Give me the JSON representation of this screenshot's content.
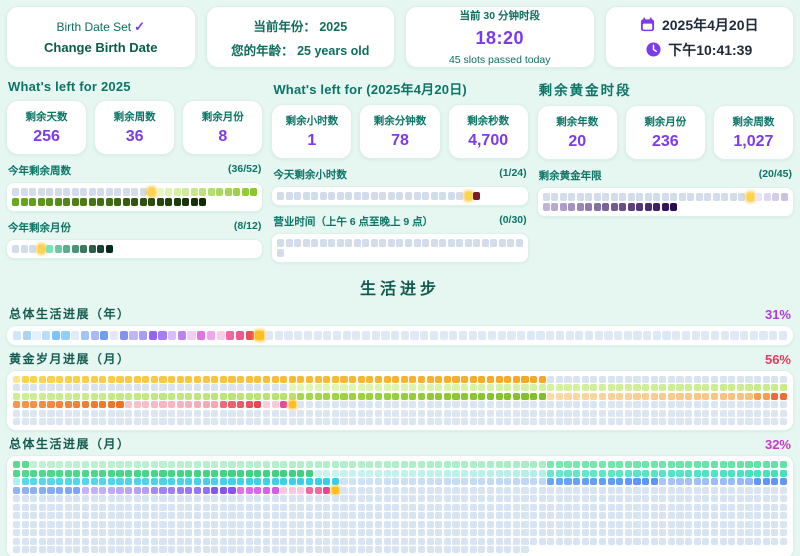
{
  "top_cards": {
    "birth": {
      "status": "Birth Date Set",
      "check": "✓",
      "button": "Change Birth Date"
    },
    "year": {
      "line1": "当前年份： 2025",
      "line2": "您的年龄： 25 years old"
    },
    "slot": {
      "label": "当前 30 分钟时段",
      "time": "18:20",
      "sub": "45 slots passed today"
    },
    "date": {
      "date": "2025年4月20日",
      "time": "下午10:41:39"
    }
  },
  "sections": {
    "left": {
      "title": "What's left for 2025",
      "stats": [
        {
          "label": "剩余天数",
          "value": "256"
        },
        {
          "label": "剩余周数",
          "value": "36"
        },
        {
          "label": "剩余月份",
          "value": "8"
        }
      ],
      "grid1_label": "今年剩余周数",
      "grid1_count": "(36/52)",
      "grid2_label": "今年剩余月份",
      "grid2_count": "(8/12)"
    },
    "middle": {
      "title": "What's left for (2025年4月20日)",
      "stats": [
        {
          "label": "剩余小时数",
          "value": "1"
        },
        {
          "label": "剩余分钟数",
          "value": "78"
        },
        {
          "label": "剩余秒数",
          "value": "4,700"
        }
      ],
      "grid1_label": "今天剩余小时数",
      "grid1_count": "(1/24)",
      "grid2_label": "营业时间（上午 6 点至晚上 9 点）",
      "grid2_count": "(0/30)"
    },
    "right": {
      "title": "剩余黄金时段",
      "stats": [
        {
          "label": "剩余年数",
          "value": "20"
        },
        {
          "label": "剩余月份",
          "value": "236"
        },
        {
          "label": "剩余周数",
          "value": "1,027"
        }
      ],
      "grid1_label": "剩余黄金年限",
      "grid1_count": "(20/45)"
    }
  },
  "life": {
    "title": "生活进步",
    "bars": [
      {
        "label": "总体生活进展（年）",
        "pct": "31%",
        "pct_color": "#b23bdf"
      },
      {
        "label": "黄金岁月进展（月）",
        "pct": "56%",
        "pct_color": "#e8385f"
      },
      {
        "label": "总体生活进展（月）",
        "pct": "32%",
        "pct_color": "#c936c9"
      }
    ]
  },
  "colors": {
    "accent_teal": "#0c7566",
    "accent_purple": "#7c3aed",
    "current_yellow": "#fbbf24",
    "passed_gray": "#d2dcea",
    "future_gray": "#dce6f3"
  },
  "grids": {
    "weeks52": {
      "runs": [
        {
          "n": 16,
          "c": "#d2dcea"
        },
        {
          "n": 1,
          "c": "#fcd34d",
          "cur": true
        },
        {
          "n": 12,
          "g": [
            "#e8f9c0",
            "#8ac72c"
          ]
        },
        {
          "n": 23,
          "g": [
            "#6aa81f",
            "#122b07"
          ]
        }
      ]
    },
    "months12": {
      "runs": [
        {
          "n": 3,
          "c": "#d2dcea"
        },
        {
          "n": 1,
          "c": "#fcd34d",
          "cur": true
        },
        {
          "n": 8,
          "g": [
            "#7ee2b8",
            "#07291d"
          ]
        }
      ]
    },
    "hours24": {
      "runs": [
        {
          "n": 22,
          "c": "#d2dcea"
        },
        {
          "n": 1,
          "c": "#fcd34d",
          "cur": true
        },
        {
          "n": 1,
          "c": "#7a1d2b"
        }
      ]
    },
    "biz30": {
      "runs": [
        {
          "n": 30,
          "c": "#d2dcea"
        }
      ]
    },
    "golden45": {
      "runs": [
        {
          "n": 24,
          "c": "#d2dcea"
        },
        {
          "n": 1,
          "c": "#fcd34d",
          "cur": true
        },
        {
          "n": 20,
          "g": [
            "#e9e3fb",
            "#2a0a52"
          ]
        }
      ]
    },
    "years80": {
      "runs": [
        {
          "list": [
            "#cfe6fb",
            "#a8d4f8",
            "#e4f0fc",
            "#bcdcfa",
            "#7dc4f6",
            "#8fd0f8",
            "#e0ecfb",
            "#9fc6f7",
            "#aab8f5",
            "#6e9ff2",
            "#e3e7fc",
            "#8591f0",
            "#c3b4fa",
            "#a79df4",
            "#8f66ec",
            "#a77df1",
            "#d9bdfa",
            "#bb84f3",
            "#f4cdf0",
            "#e473e2",
            "#f0a6ee",
            "#f8cfe6",
            "#f0679f",
            "#ee5a8b",
            "#ef4d55"
          ]
        },
        {
          "n": 1,
          "c": "#fbbf24",
          "cur": true
        },
        {
          "n": 54,
          "c": "#dfe9f6"
        }
      ]
    },
    "golden540": {
      "runs": [
        {
          "n": 1,
          "c": "#fde68a"
        },
        {
          "n": 61,
          "g": [
            "#fcd34d",
            "#f6a723"
          ]
        },
        {
          "n": 60,
          "c": "#dae4f0"
        },
        {
          "n": 58,
          "g": [
            "#e2f6b5",
            "#c8ec8a"
          ]
        },
        {
          "n": 33,
          "g": [
            "#cdee96",
            "#b5e36e"
          ]
        },
        {
          "n": 29,
          "g": [
            "#a4d94a",
            "#7fbf27"
          ]
        },
        {
          "n": 24,
          "g": [
            "#fcd9a8",
            "#f9bf7d"
          ]
        },
        {
          "n": 2,
          "c": "#f59e4b"
        },
        {
          "n": 2,
          "c": "#ef6a3a"
        },
        {
          "n": 13,
          "g": [
            "#f8954d",
            "#ef7222"
          ]
        },
        {
          "n": 11,
          "g": [
            "#f9c3cb",
            "#f4a6b5"
          ]
        },
        {
          "n": 5,
          "g": [
            "#ee6a76",
            "#e74853"
          ]
        },
        {
          "n": 2,
          "c": "#f9ccd8"
        },
        {
          "n": 1,
          "c": "#e84a9b"
        },
        {
          "n": 1,
          "c": "#fbbf24",
          "cur": true
        },
        {
          "n": 237,
          "c": "#dce6f3"
        }
      ]
    },
    "months960": {
      "runs": [
        {
          "n": 2,
          "c": "#5fd98f"
        },
        {
          "n": 60,
          "g": [
            "#bdf2d2",
            "#a9edc6"
          ]
        },
        {
          "n": 28,
          "g": [
            "#79e8b0",
            "#5fe3a4"
          ]
        },
        {
          "n": 35,
          "g": [
            "#52d88d",
            "#3ecf7f"
          ]
        },
        {
          "n": 27,
          "g": [
            "#c9f4ef",
            "#b2efe8"
          ]
        },
        {
          "n": 28,
          "g": [
            "#69e6cf",
            "#45dfc2"
          ]
        },
        {
          "n": 1,
          "c": "#aeeef8"
        },
        {
          "n": 37,
          "g": [
            "#5ad7ef",
            "#38cde8"
          ]
        },
        {
          "n": 24,
          "g": [
            "#cfe2f8",
            "#bed7f5"
          ]
        },
        {
          "n": 13,
          "g": [
            "#6da4f6",
            "#5b96f3"
          ]
        },
        {
          "n": 11,
          "g": [
            "#a9c4fa",
            "#96b7f8"
          ]
        },
        {
          "n": 4,
          "c": "#6395f5"
        },
        {
          "n": 8,
          "g": [
            "#8fb3f8",
            "#7da4f6"
          ]
        },
        {
          "n": 8,
          "g": [
            "#c3b4fc",
            "#b29efa"
          ]
        },
        {
          "n": 7,
          "g": [
            "#a487f8",
            "#9271f3"
          ]
        },
        {
          "n": 3,
          "c": "#8456ee"
        },
        {
          "n": 5,
          "g": [
            "#e070f0",
            "#d55be8"
          ]
        },
        {
          "n": 3,
          "c": "#f6c6e3"
        },
        {
          "n": 2,
          "c": "#f2699e"
        },
        {
          "n": 1,
          "c": "#e8439b"
        },
        {
          "n": 1,
          "c": "#fbbf24",
          "cur": true
        },
        {
          "n": 652,
          "c": "#d8e4f4"
        }
      ]
    }
  }
}
